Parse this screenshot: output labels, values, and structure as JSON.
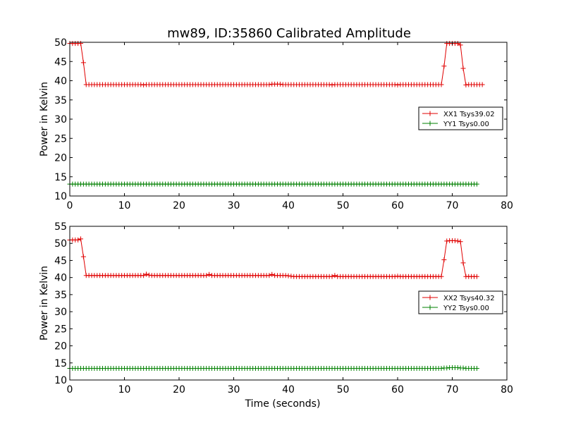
{
  "figure_title": "mw89, ID:35860 Calibrated Amplitude",
  "colors": {
    "series_xx": "#e00000",
    "series_yy": "#008000",
    "axes": "#000000",
    "background": "#ffffff"
  },
  "chart_data": [
    {
      "type": "line",
      "title": "mw89, ID:35860 Calibrated Amplitude",
      "xlabel": "",
      "ylabel": "Power in Kelvin",
      "xlim": [
        0,
        80
      ],
      "ylim": [
        10,
        50
      ],
      "xticks": [
        0,
        10,
        20,
        30,
        40,
        50,
        60,
        70,
        80
      ],
      "yticks": [
        10,
        15,
        20,
        25,
        30,
        35,
        40,
        45,
        50
      ],
      "grid": false,
      "legend_position": "right",
      "marker": "+",
      "series": [
        {
          "name": "XX1 Tsys39.02",
          "color": "#e00000",
          "x_start": 0.0,
          "x_step": 0.5,
          "values": [
            49.7,
            49.7,
            49.7,
            49.7,
            49.7,
            44.7,
            39.0,
            39.0,
            39.0,
            39.0,
            39.0,
            39.0,
            39.0,
            39.0,
            39.0,
            39.0,
            39.0,
            39.0,
            39.0,
            39.0,
            39.0,
            39.0,
            39.0,
            39.0,
            39.0,
            39.0,
            39.0,
            38.9,
            39.0,
            39.0,
            39.0,
            39.0,
            39.0,
            39.0,
            39.0,
            39.0,
            39.0,
            39.0,
            39.0,
            39.0,
            39.0,
            39.0,
            39.0,
            39.0,
            39.0,
            39.0,
            39.0,
            39.0,
            39.0,
            39.0,
            39.0,
            39.0,
            39.0,
            39.0,
            39.0,
            39.0,
            39.0,
            39.0,
            39.0,
            39.0,
            39.0,
            39.0,
            39.0,
            39.0,
            39.0,
            39.0,
            39.0,
            39.0,
            39.0,
            39.0,
            39.0,
            39.0,
            39.0,
            39.0,
            39.1,
            39.1,
            39.1,
            39.1,
            39.0,
            39.0,
            39.0,
            39.0,
            39.0,
            39.0,
            39.0,
            39.0,
            39.0,
            39.0,
            39.0,
            39.0,
            39.0,
            39.0,
            39.0,
            39.0,
            39.0,
            39.0,
            38.9,
            39.0,
            39.0,
            39.0,
            39.0,
            39.0,
            39.0,
            39.0,
            39.0,
            39.0,
            39.0,
            39.0,
            39.0,
            39.0,
            39.0,
            39.0,
            39.0,
            39.0,
            39.0,
            39.0,
            39.0,
            39.0,
            39.0,
            39.0,
            38.9,
            39.0,
            39.0,
            39.0,
            39.0,
            39.0,
            39.0,
            39.0,
            39.0,
            39.0,
            39.0,
            39.0,
            39.0,
            39.0,
            39.0,
            39.0,
            39.0,
            43.8,
            49.7,
            49.7,
            49.7,
            49.7,
            49.7,
            49.3,
            43.2,
            38.9,
            39.0,
            39.0,
            39.0,
            39.0,
            39.0,
            39.0
          ]
        },
        {
          "name": "YY1 Tsys0.00",
          "color": "#008000",
          "x_start": 0.0,
          "x_step": 0.5,
          "values": [
            13.1,
            13.1,
            13.1,
            13.1,
            13.1,
            13.1,
            13.1,
            13.1,
            13.1,
            13.1,
            13.1,
            13.1,
            13.1,
            13.1,
            13.1,
            13.1,
            13.1,
            13.1,
            13.1,
            13.1,
            13.1,
            13.1,
            13.1,
            13.1,
            13.1,
            13.1,
            13.1,
            13.1,
            13.1,
            13.1,
            13.1,
            13.1,
            13.1,
            13.1,
            13.1,
            13.1,
            13.1,
            13.1,
            13.1,
            13.1,
            13.1,
            13.1,
            13.1,
            13.1,
            13.1,
            13.1,
            13.1,
            13.1,
            13.1,
            13.1,
            13.1,
            13.1,
            13.1,
            13.1,
            13.1,
            13.1,
            13.1,
            13.1,
            13.1,
            13.1,
            13.1,
            13.1,
            13.1,
            13.1,
            13.1,
            13.1,
            13.1,
            13.1,
            13.1,
            13.1,
            13.1,
            13.1,
            13.1,
            13.1,
            13.1,
            13.1,
            13.1,
            13.1,
            13.1,
            13.1,
            13.1,
            13.1,
            13.1,
            13.1,
            13.1,
            13.1,
            13.1,
            13.1,
            13.1,
            13.1,
            13.1,
            13.1,
            13.1,
            13.1,
            13.1,
            13.1,
            13.1,
            13.1,
            13.1,
            13.1,
            13.1,
            13.1,
            13.1,
            13.1,
            13.1,
            13.1,
            13.1,
            13.1,
            13.1,
            13.1,
            13.1,
            13.1,
            13.1,
            13.1,
            13.1,
            13.1,
            13.1,
            13.1,
            13.1,
            13.1,
            13.1,
            13.1,
            13.1,
            13.1,
            13.1,
            13.1,
            13.1,
            13.1,
            13.1,
            13.1,
            13.1,
            13.1,
            13.1,
            13.1,
            13.1,
            13.1,
            13.1,
            13.1,
            13.1,
            13.1,
            13.1,
            13.1,
            13.1,
            13.1,
            13.1,
            13.1,
            13.1,
            13.1,
            13.1,
            13.1
          ]
        }
      ]
    },
    {
      "type": "line",
      "title": "",
      "xlabel": "Time (seconds)",
      "ylabel": "Power in Kelvin",
      "xlim": [
        0,
        80
      ],
      "ylim": [
        10,
        55
      ],
      "xticks": [
        0,
        10,
        20,
        30,
        40,
        50,
        60,
        70,
        80
      ],
      "yticks": [
        10,
        15,
        20,
        25,
        30,
        35,
        40,
        45,
        50,
        55
      ],
      "grid": false,
      "legend_position": "right",
      "marker": "+",
      "series": [
        {
          "name": "XX2 Tsys40.32",
          "color": "#e00000",
          "x_start": 0.0,
          "x_step": 0.5,
          "values": [
            51.0,
            51.0,
            51.0,
            51.0,
            51.3,
            46.1,
            40.6,
            40.6,
            40.6,
            40.6,
            40.6,
            40.6,
            40.6,
            40.6,
            40.6,
            40.6,
            40.6,
            40.6,
            40.6,
            40.6,
            40.6,
            40.6,
            40.6,
            40.6,
            40.6,
            40.6,
            40.6,
            40.6,
            41.0,
            40.7,
            40.6,
            40.6,
            40.6,
            40.6,
            40.6,
            40.6,
            40.6,
            40.6,
            40.6,
            40.6,
            40.6,
            40.6,
            40.6,
            40.6,
            40.6,
            40.6,
            40.6,
            40.6,
            40.6,
            40.6,
            40.6,
            40.9,
            40.6,
            40.6,
            40.6,
            40.6,
            40.6,
            40.6,
            40.6,
            40.6,
            40.6,
            40.6,
            40.6,
            40.6,
            40.6,
            40.6,
            40.6,
            40.6,
            40.6,
            40.6,
            40.6,
            40.6,
            40.6,
            40.6,
            40.9,
            40.6,
            40.6,
            40.6,
            40.6,
            40.6,
            40.5,
            40.4,
            40.3,
            40.3,
            40.3,
            40.3,
            40.3,
            40.3,
            40.3,
            40.3,
            40.3,
            40.3,
            40.3,
            40.3,
            40.3,
            40.3,
            40.3,
            40.6,
            40.3,
            40.3,
            40.3,
            40.3,
            40.3,
            40.3,
            40.3,
            40.3,
            40.3,
            40.3,
            40.3,
            40.3,
            40.3,
            40.3,
            40.3,
            40.3,
            40.3,
            40.3,
            40.3,
            40.3,
            40.3,
            40.3,
            40.4,
            40.3,
            40.3,
            40.3,
            40.3,
            40.3,
            40.3,
            40.3,
            40.3,
            40.3,
            40.3,
            40.3,
            40.3,
            40.3,
            40.3,
            40.3,
            40.3,
            45.2,
            50.7,
            50.8,
            50.8,
            50.8,
            50.7,
            50.5,
            44.3,
            40.3,
            40.3,
            40.3,
            40.3,
            40.3
          ]
        },
        {
          "name": "YY2 Tsys0.00",
          "color": "#008000",
          "x_start": 0.0,
          "x_step": 0.5,
          "values": [
            13.4,
            13.4,
            13.4,
            13.4,
            13.4,
            13.4,
            13.4,
            13.4,
            13.4,
            13.4,
            13.4,
            13.4,
            13.4,
            13.4,
            13.4,
            13.4,
            13.4,
            13.4,
            13.4,
            13.4,
            13.4,
            13.4,
            13.4,
            13.4,
            13.4,
            13.4,
            13.4,
            13.4,
            13.4,
            13.4,
            13.4,
            13.4,
            13.4,
            13.4,
            13.4,
            13.4,
            13.4,
            13.4,
            13.4,
            13.4,
            13.4,
            13.4,
            13.4,
            13.4,
            13.4,
            13.4,
            13.4,
            13.4,
            13.4,
            13.4,
            13.4,
            13.4,
            13.4,
            13.4,
            13.4,
            13.4,
            13.4,
            13.4,
            13.4,
            13.4,
            13.4,
            13.4,
            13.4,
            13.4,
            13.4,
            13.4,
            13.4,
            13.4,
            13.4,
            13.4,
            13.4,
            13.4,
            13.4,
            13.4,
            13.4,
            13.4,
            13.4,
            13.4,
            13.4,
            13.4,
            13.4,
            13.4,
            13.4,
            13.4,
            13.4,
            13.4,
            13.4,
            13.4,
            13.4,
            13.4,
            13.4,
            13.4,
            13.4,
            13.4,
            13.4,
            13.4,
            13.4,
            13.4,
            13.4,
            13.4,
            13.4,
            13.4,
            13.4,
            13.4,
            13.4,
            13.4,
            13.4,
            13.4,
            13.4,
            13.4,
            13.4,
            13.4,
            13.4,
            13.4,
            13.4,
            13.4,
            13.4,
            13.4,
            13.4,
            13.4,
            13.4,
            13.4,
            13.4,
            13.4,
            13.4,
            13.4,
            13.4,
            13.4,
            13.4,
            13.4,
            13.4,
            13.4,
            13.4,
            13.4,
            13.4,
            13.4,
            13.4,
            13.5,
            13.5,
            13.6,
            13.6,
            13.6,
            13.6,
            13.5,
            13.5,
            13.4,
            13.4,
            13.4,
            13.4,
            13.4
          ]
        }
      ]
    }
  ]
}
